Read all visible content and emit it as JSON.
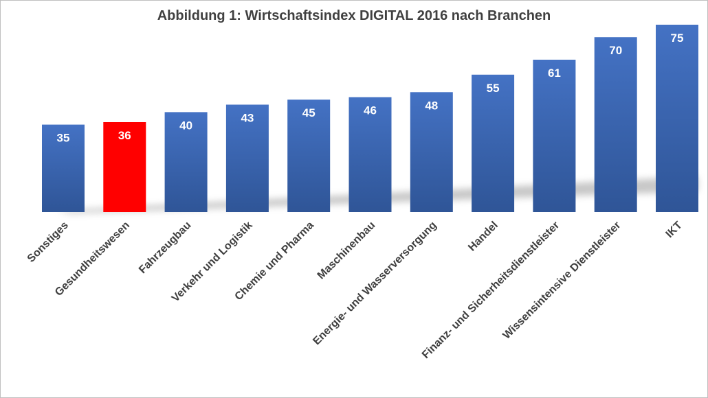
{
  "chart_data": {
    "type": "bar",
    "title": "Abbildung 1: Wirtschaftsindex DIGITAL 2016 nach Branchen",
    "xlabel": "",
    "ylabel": "",
    "categories": [
      "Sonstiges",
      "Gesundheitswesen",
      "Fahrzeugbau",
      "Verkehr und Logistik",
      "Chemie und Pharma",
      "Maschinenbau",
      "Energie- und Wasserversorgung",
      "Handel",
      "Finanz- und Sicherheitsdienstleister",
      "Wissensintensive Dienstleister",
      "IKT"
    ],
    "values": [
      35,
      36,
      40,
      43,
      45,
      46,
      48,
      55,
      61,
      70,
      75
    ],
    "highlight_index": 1,
    "bar_color": "#3a64b8",
    "highlight_color": "#ff0000",
    "label_color": "#ffffff",
    "grid": false,
    "legend": "none",
    "yaxis_visible": false
  }
}
